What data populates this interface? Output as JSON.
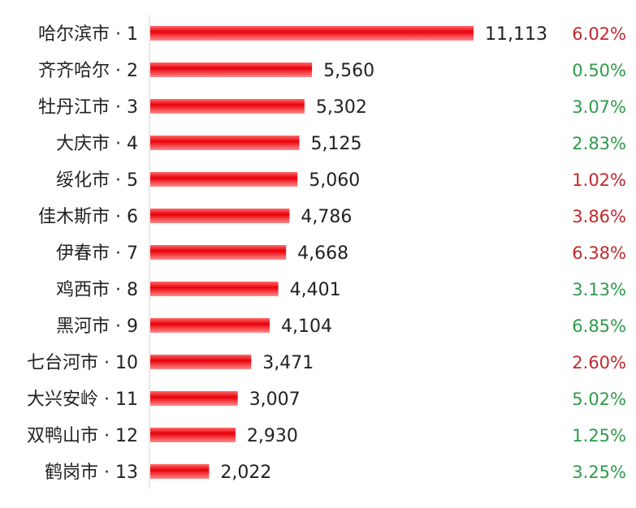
{
  "chart_data": {
    "type": "bar",
    "orientation": "horizontal",
    "title": "",
    "xlabel": "",
    "ylabel": "",
    "grid": false,
    "categories": [
      "哈尔滨市 · 1",
      "齐齐哈尔 · 2",
      "牡丹江市 · 3",
      "大庆市 · 4",
      "绥化市 · 5",
      "佳木斯市 · 6",
      "伊春市 · 7",
      "鸡西市 · 8",
      "黑河市 · 9",
      "七台河市 · 10",
      "大兴安岭 · 11",
      "双鸭山市 · 12",
      "鹤岗市 · 13"
    ],
    "values": [
      11113,
      5560,
      5302,
      5125,
      5060,
      4786,
      4668,
      4401,
      4104,
      3471,
      3007,
      2930,
      2022
    ],
    "value_labels": [
      "11,113",
      "5,560",
      "5,302",
      "5,125",
      "5,060",
      "4,786",
      "4,668",
      "4,401",
      "4,104",
      "3,471",
      "3,007",
      "2,930",
      "2,022"
    ],
    "pct_labels": [
      "6.02%",
      "0.50%",
      "3.07%",
      "2.83%",
      "1.02%",
      "3.86%",
      "6.38%",
      "3.13%",
      "6.85%",
      "2.60%",
      "5.02%",
      "1.25%",
      "3.25%"
    ],
    "pct_colors": [
      "#c0282c",
      "#2e9a4a",
      "#2e9a4a",
      "#2e9a4a",
      "#c0282c",
      "#c0282c",
      "#c0282c",
      "#2e9a4a",
      "#2e9a4a",
      "#c0282c",
      "#2e9a4a",
      "#2e9a4a",
      "#2e9a4a"
    ],
    "xlim": [
      0,
      11113
    ],
    "bar_color": "#e8000a"
  }
}
